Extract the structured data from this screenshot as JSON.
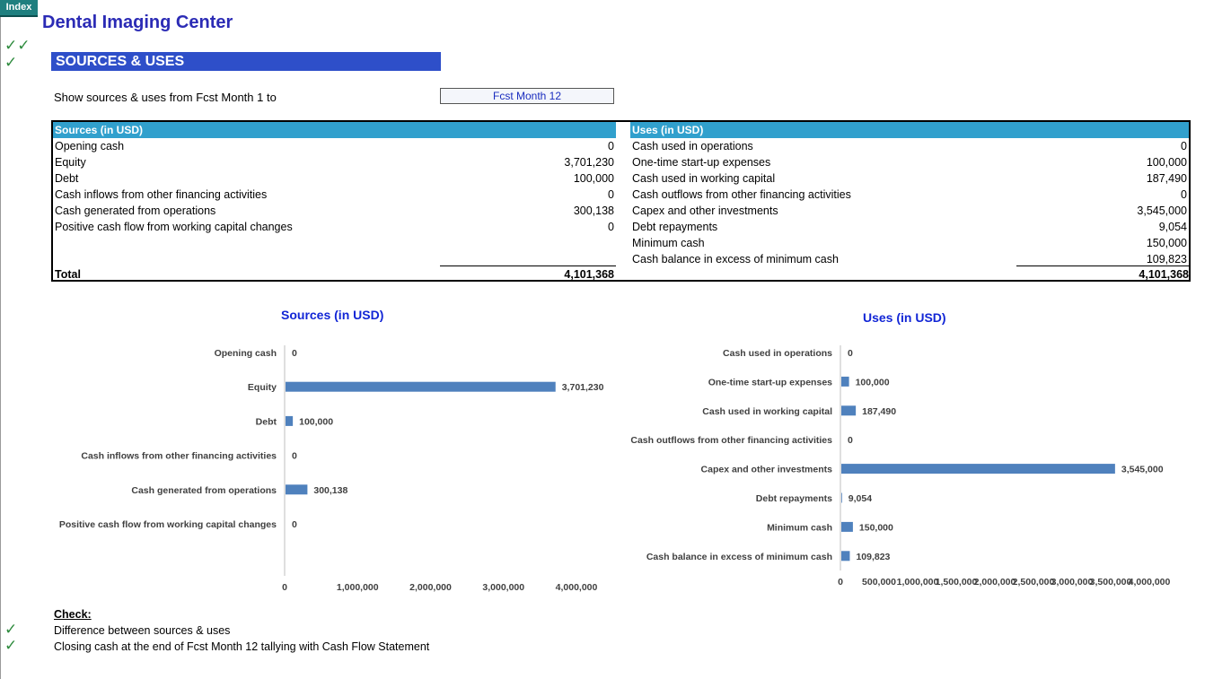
{
  "nav": {
    "index_label": "Index"
  },
  "header": {
    "title": "Dental Imaging Center",
    "section": "SOURCES & USES"
  },
  "range": {
    "label": "Show sources & uses from Fcst Month 1 to",
    "selected": "Fcst Month 12"
  },
  "sources": {
    "header": "Sources (in USD)",
    "rows": [
      {
        "label": "Opening cash",
        "value": "0"
      },
      {
        "label": "Equity",
        "value": "3,701,230"
      },
      {
        "label": "Debt",
        "value": "100,000"
      },
      {
        "label": "Cash inflows from other financing activities",
        "value": "0"
      },
      {
        "label": "Cash generated from operations",
        "value": "300,138"
      },
      {
        "label": "Positive cash flow from working capital changes",
        "value": "0"
      }
    ],
    "total_label": "Total",
    "total_value": "4,101,368"
  },
  "uses": {
    "header": "Uses (in USD)",
    "rows": [
      {
        "label": "Cash used in operations",
        "value": "0"
      },
      {
        "label": "One-time start-up expenses",
        "value": "100,000"
      },
      {
        "label": "Cash used in working capital",
        "value": "187,490"
      },
      {
        "label": "Cash outflows from other  financing activities",
        "value": "0"
      },
      {
        "label": "Capex and other investments",
        "value": "3,545,000"
      },
      {
        "label": "Debt repayments",
        "value": "9,054"
      },
      {
        "label": "Minimum cash",
        "value": "150,000"
      },
      {
        "label": "Cash balance in excess of minimum cash",
        "value": "109,823"
      }
    ],
    "total_value": "4,101,368"
  },
  "chart_data": [
    {
      "type": "bar",
      "orientation": "horizontal",
      "title": "Sources (in USD)",
      "categories": [
        "Opening cash",
        "Equity",
        "Debt",
        "Cash inflows from other financing activities",
        "Cash generated from operations",
        "Positive cash flow from working capital changes"
      ],
      "values": [
        0,
        3701230,
        100000,
        0,
        300138,
        0
      ],
      "value_labels": [
        "0",
        "3,701,230",
        "100,000",
        "0",
        "300,138",
        "0"
      ],
      "xlim": [
        0,
        4000000
      ],
      "xticks": [
        "0",
        "1,000,000",
        "2,000,000",
        "3,000,000",
        "4,000,000"
      ],
      "grid": false,
      "color": "#4f81bd"
    },
    {
      "type": "bar",
      "orientation": "horizontal",
      "title": "Uses (in USD)",
      "categories": [
        "Cash used in operations",
        "One-time start-up expenses",
        "Cash used in working capital",
        "Cash outflows from other  financing activities",
        "Capex and other investments",
        "Debt repayments",
        "Minimum cash",
        "Cash balance in excess of minimum cash"
      ],
      "values": [
        0,
        100000,
        187490,
        0,
        3545000,
        9054,
        150000,
        109823
      ],
      "value_labels": [
        "0",
        "100,000",
        "187,490",
        "0",
        "3,545,000",
        "9,054",
        "150,000",
        "109,823"
      ],
      "xlim": [
        0,
        4000000
      ],
      "xticks": [
        "0",
        "500,000",
        "1,000,000",
        "1,500,000",
        "2,000,000",
        "2,500,000",
        "3,000,000",
        "3,500,000",
        "4,000,000"
      ],
      "grid": false,
      "color": "#4f81bd"
    }
  ],
  "check": {
    "title": "Check:",
    "items": [
      "Difference between sources & uses",
      "Closing cash at the end of Fcst Month 12 tallying with Cash Flow Statement"
    ]
  }
}
